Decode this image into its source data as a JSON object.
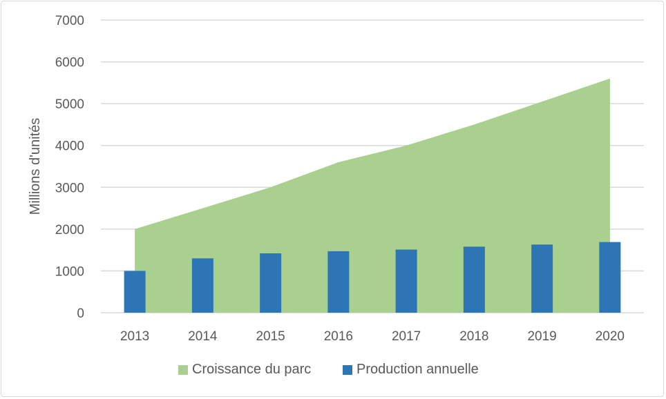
{
  "chart_data": {
    "type": "bar+area",
    "title": "",
    "xlabel": "",
    "ylabel": "Millions d'unités",
    "ylim": [
      0,
      7000
    ],
    "yticks": [
      "0",
      "1000",
      "2000",
      "3000",
      "4000",
      "5000",
      "6000",
      "7000"
    ],
    "categories": [
      "2013",
      "2014",
      "2015",
      "2016",
      "2017",
      "2018",
      "2019",
      "2020"
    ],
    "grid": true,
    "legend_position": "bottom",
    "series": [
      {
        "name": "Croissance du parc",
        "kind": "area",
        "color": "#a9d08e",
        "values": [
          2000,
          2500,
          3000,
          3600,
          4000,
          4500,
          5050,
          5600
        ]
      },
      {
        "name": "Production annuelle",
        "kind": "bar",
        "color": "#2e75b6",
        "values": [
          1000,
          1300,
          1420,
          1470,
          1510,
          1580,
          1630,
          1690
        ]
      }
    ]
  }
}
